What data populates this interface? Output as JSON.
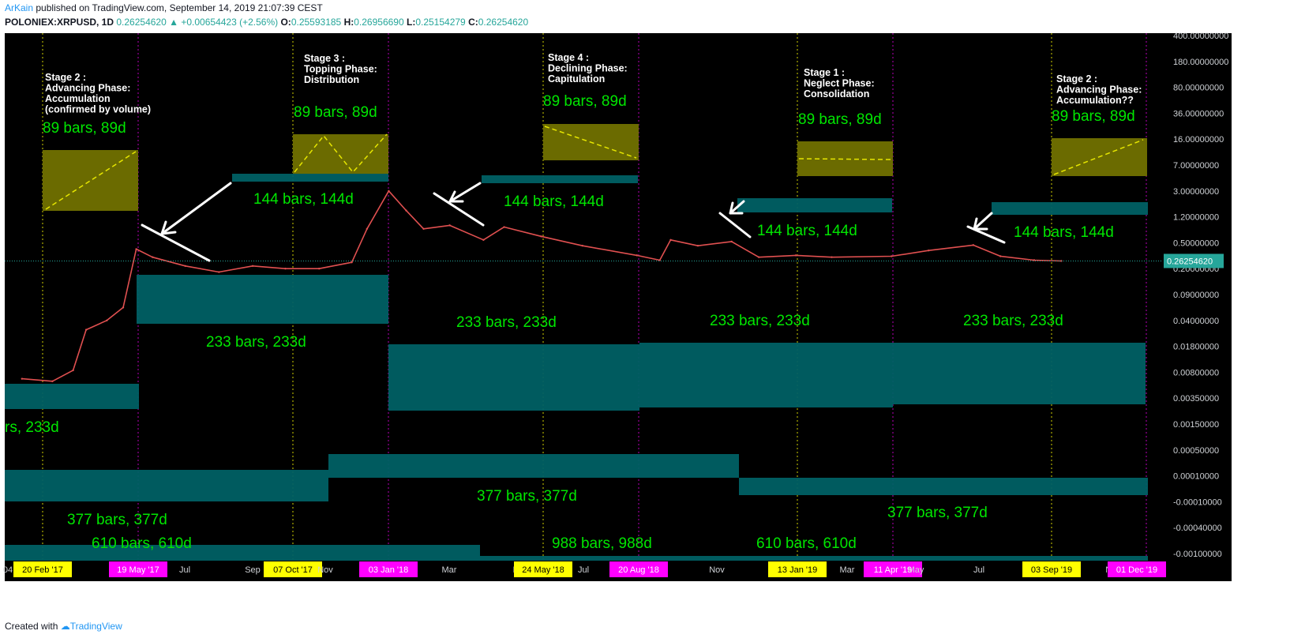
{
  "header": {
    "author": "ArKain",
    "published": "published on TradingView.com, September 14, 2019 21:07:39 CEST",
    "symbol": "POLONIEX:XRPUSD, 1D",
    "last": "0.26254620",
    "change": "+0.00654423 (+2.56%)",
    "o_label": "O:",
    "o": "0.25593185",
    "h_label": "H:",
    "h": "0.26956690",
    "l_label": "L:",
    "l": "0.25154279",
    "c_label": "C:",
    "c": "0.26254620"
  },
  "footer": {
    "created_with": "Created with",
    "brand": "TradingView"
  },
  "colors": {
    "background": "#000000",
    "fib_box": "#006064",
    "phase_box": "#6b6b00",
    "label_green": "#00e600",
    "yellow_line": "#e6e600",
    "magenta_line": "#cc00cc",
    "price_line": "#26a69a"
  },
  "chart_data": {
    "type": "line",
    "title": "",
    "scale": "log",
    "price_axis": [
      "400.00000000",
      "180.00000000",
      "80.00000000",
      "36.00000000",
      "16.00000000",
      "7.00000000",
      "3.00000000",
      "1.20000000",
      "0.50000000",
      "0.20000000",
      "0.09000000",
      "0.04000000",
      "0.01800000",
      "0.00800000",
      "0.00350000",
      "0.00150000",
      "0.00050000",
      "0.00010000",
      "-0.00010000",
      "-0.00040000",
      "-0.00100000"
    ],
    "last_price_label": "0.26254620",
    "time_axis": [
      "04",
      "20 Feb '17",
      "19 May '17",
      "Jul",
      "Sep",
      "07 Oct '17",
      "Nov",
      "03 Jan '18",
      "Mar",
      "May",
      "24 May '18",
      "Jul",
      "20 Aug '18",
      "Nov",
      "13 Jan '19",
      "Mar",
      "11 Apr '19",
      "May",
      "Jul",
      "03 Sep '19",
      "Nov",
      "01 Dec '19"
    ],
    "highlighted_dates": {
      "yellow": [
        "20 Feb '17",
        "07 Oct '17",
        "24 May '18",
        "13 Jan '19",
        "03 Sep '19"
      ],
      "magenta": [
        "19 May '17",
        "03 Jan '18",
        "20 Aug '18",
        "11 Apr '19",
        "01 Dec '19"
      ]
    },
    "price_series": [
      {
        "date": "2017-02-01",
        "close": 0.0065
      },
      {
        "date": "2017-03-01",
        "close": 0.006
      },
      {
        "date": "2017-03-20",
        "close": 0.0085
      },
      {
        "date": "2017-04-01",
        "close": 0.03
      },
      {
        "date": "2017-04-20",
        "close": 0.04
      },
      {
        "date": "2017-05-05",
        "close": 0.06
      },
      {
        "date": "2017-05-17",
        "close": 0.4
      },
      {
        "date": "2017-06-01",
        "close": 0.3
      },
      {
        "date": "2017-07-01",
        "close": 0.22
      },
      {
        "date": "2017-08-01",
        "close": 0.18
      },
      {
        "date": "2017-09-01",
        "close": 0.22
      },
      {
        "date": "2017-10-01",
        "close": 0.2
      },
      {
        "date": "2017-11-01",
        "close": 0.2
      },
      {
        "date": "2017-12-01",
        "close": 0.25
      },
      {
        "date": "2017-12-15",
        "close": 0.8
      },
      {
        "date": "2018-01-04",
        "close": 3.0
      },
      {
        "date": "2018-01-20",
        "close": 1.5
      },
      {
        "date": "2018-02-05",
        "close": 0.8
      },
      {
        "date": "2018-03-01",
        "close": 0.9
      },
      {
        "date": "2018-04-01",
        "close": 0.55
      },
      {
        "date": "2018-04-20",
        "close": 0.85
      },
      {
        "date": "2018-05-24",
        "close": 0.62
      },
      {
        "date": "2018-07-01",
        "close": 0.45
      },
      {
        "date": "2018-08-20",
        "close": 0.32
      },
      {
        "date": "2018-09-10",
        "close": 0.27
      },
      {
        "date": "2018-09-20",
        "close": 0.55
      },
      {
        "date": "2018-10-15",
        "close": 0.45
      },
      {
        "date": "2018-11-15",
        "close": 0.52
      },
      {
        "date": "2018-12-10",
        "close": 0.3
      },
      {
        "date": "2019-01-13",
        "close": 0.32
      },
      {
        "date": "2019-02-15",
        "close": 0.3
      },
      {
        "date": "2019-04-11",
        "close": 0.31
      },
      {
        "date": "2019-05-15",
        "close": 0.38
      },
      {
        "date": "2019-06-25",
        "close": 0.46
      },
      {
        "date": "2019-07-20",
        "close": 0.31
      },
      {
        "date": "2019-08-20",
        "close": 0.27
      },
      {
        "date": "2019-09-14",
        "close": 0.2625462
      }
    ],
    "stages": [
      {
        "lines": [
          "Stage 2 :",
          "Advancing Phase:",
          "Accumulation",
          "(confirmed by volume)"
        ],
        "range": "89 bars, 89d"
      },
      {
        "lines": [
          "Stage 3 :",
          "Topping Phase:",
          "Distribution"
        ],
        "range": "89 bars, 89d"
      },
      {
        "lines": [
          "Stage 4 :",
          "Declining Phase:",
          "Capitulation"
        ],
        "range": "89 bars, 89d"
      },
      {
        "lines": [
          "Stage 1 :",
          "Neglect Phase:",
          "Consolidation"
        ],
        "range": "89 bars, 89d"
      },
      {
        "lines": [
          "Stage 2 :",
          "Advancing Phase:",
          "Accumulation??"
        ],
        "range": "89 bars, 89d"
      }
    ],
    "fib_ranges": [
      "144 bars, 144d",
      "144 bars, 144d",
      "144 bars, 144d",
      "144 bars, 144d",
      "233 bars, 233d",
      "233 bars, 233d",
      "233 bars, 233d",
      "233 bars, 233d",
      "233 bars, 233d",
      "377 bars, 377d",
      "377 bars, 377d",
      "377 bars, 377d",
      "610 bars, 610d",
      "988 bars, 988d",
      "610 bars, 610d"
    ],
    "partial_label": "rs, 233d",
    "grid": false,
    "legend": "none"
  }
}
